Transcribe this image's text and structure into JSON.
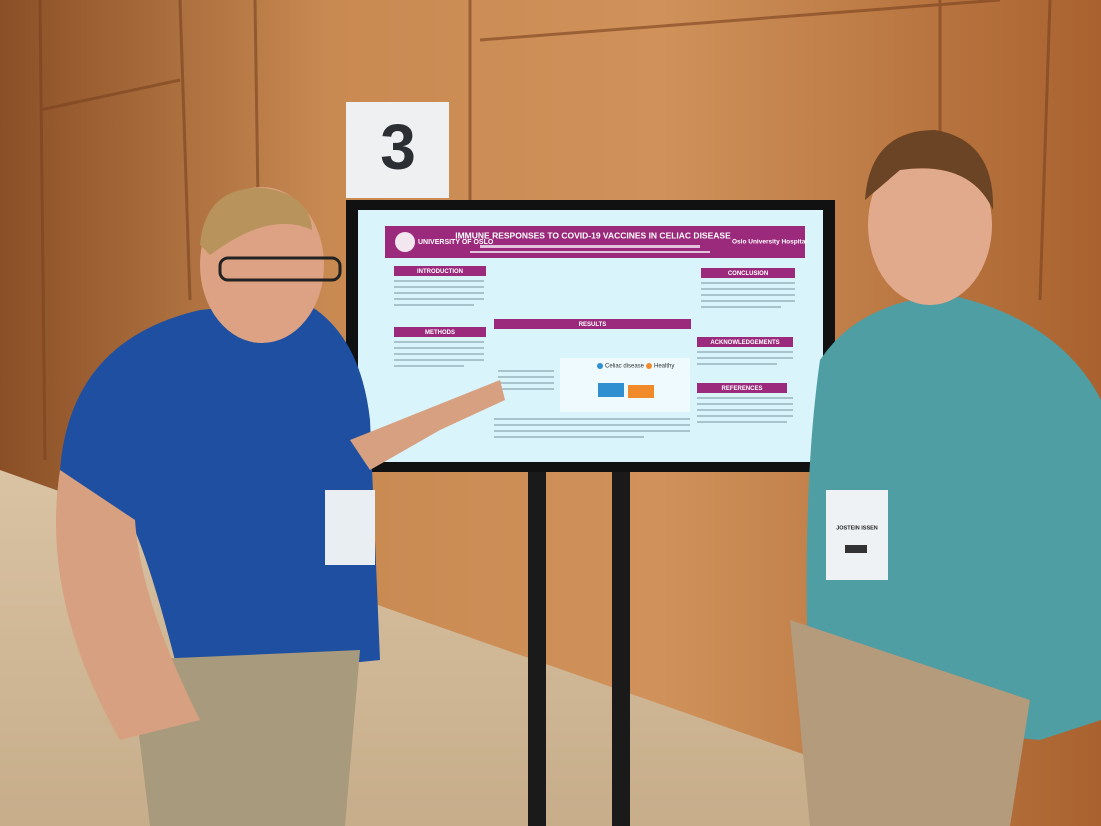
{
  "sign": {
    "number": "3"
  },
  "poster": {
    "logo_left": "UNIVERSITY OF OSLO",
    "logo_right": "Oslo University Hospital",
    "title": "IMMUNE RESPONSES TO COVID-19 VACCINES IN CELIAC DISEASE",
    "sections": [
      "INTRODUCTION",
      "METHODS",
      "RESULTS",
      "CONCLUSION",
      "ACKNOWLEDGEMENTS",
      "REFERENCES"
    ],
    "legend": [
      "Celiac disease",
      "Healthy"
    ]
  },
  "badge": {
    "name": "JOSTEIN ISSEN"
  }
}
